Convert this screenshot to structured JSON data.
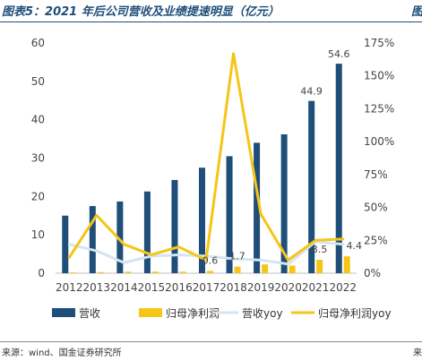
{
  "header": {
    "title": "图表5：2021 年后公司营收及业绩提速明显（亿元）",
    "title_right": "图"
  },
  "footer": {
    "source": "来源：wind、国金证券研究所",
    "source_right": "来"
  },
  "chart_data": {
    "type": "bar",
    "title": "图表5：2021 年后公司营收及业绩提速明显（亿元）",
    "categories": [
      "2012",
      "2013",
      "2014",
      "2015",
      "2016",
      "2017",
      "2018",
      "2019",
      "2020",
      "2021",
      "2022"
    ],
    "y_left": {
      "ylim": [
        0,
        60
      ],
      "ticks": [
        "0",
        "10",
        "20",
        "30",
        "40",
        "50",
        "60"
      ]
    },
    "y_right": {
      "ylim": [
        0,
        1.75
      ],
      "ticks": [
        "0%",
        "25%",
        "50%",
        "75%",
        "100%",
        "125%",
        "150%",
        "175%"
      ]
    },
    "series": [
      {
        "name": "营收",
        "type": "bar",
        "axis": "left",
        "color": "#1f4e79",
        "values": [
          15.0,
          17.5,
          18.7,
          21.3,
          24.3,
          27.5,
          30.5,
          34.0,
          36.2,
          44.9,
          54.6
        ]
      },
      {
        "name": "归母净利润",
        "type": "bar",
        "axis": "left",
        "color": "#f5c518",
        "values": [
          0.2,
          0.3,
          0.4,
          0.4,
          0.4,
          0.6,
          1.7,
          2.3,
          2.0,
          3.5,
          4.4
        ]
      },
      {
        "name": "营收yoy",
        "type": "line",
        "axis": "right",
        "color": "#d6e4ef",
        "values": [
          0.22,
          0.17,
          0.08,
          0.13,
          0.14,
          0.13,
          0.11,
          0.1,
          0.07,
          0.24,
          0.22
        ]
      },
      {
        "name": "归母净利润yoy",
        "type": "line",
        "axis": "right",
        "color": "#f5c518",
        "values": [
          0.12,
          0.44,
          0.22,
          0.14,
          0.2,
          0.1,
          1.67,
          0.45,
          0.1,
          0.25,
          0.26
        ]
      }
    ],
    "data_labels": [
      {
        "series": "营收",
        "category": "2021",
        "text": "44.9"
      },
      {
        "series": "营收",
        "category": "2022",
        "text": "54.6"
      },
      {
        "series": "归母净利润",
        "category": "2017",
        "text": "0.6"
      },
      {
        "series": "归母净利润",
        "category": "2018",
        "text": "1.7"
      },
      {
        "series": "归母净利润",
        "category": "2021",
        "text": "3.5"
      },
      {
        "series": "归母净利润",
        "category": "2022",
        "text": "4.4"
      }
    ],
    "legend": {
      "position": "bottom",
      "items": [
        {
          "label": "营收",
          "kind": "bar",
          "color": "#1f4e79"
        },
        {
          "label": "归母净利润",
          "kind": "bar",
          "color": "#f5c518"
        },
        {
          "label": "营收yoy",
          "kind": "line",
          "color": "#d6e4ef"
        },
        {
          "label": "归母净利润yoy",
          "kind": "line",
          "color": "#f5c518"
        }
      ]
    },
    "grid": false
  }
}
